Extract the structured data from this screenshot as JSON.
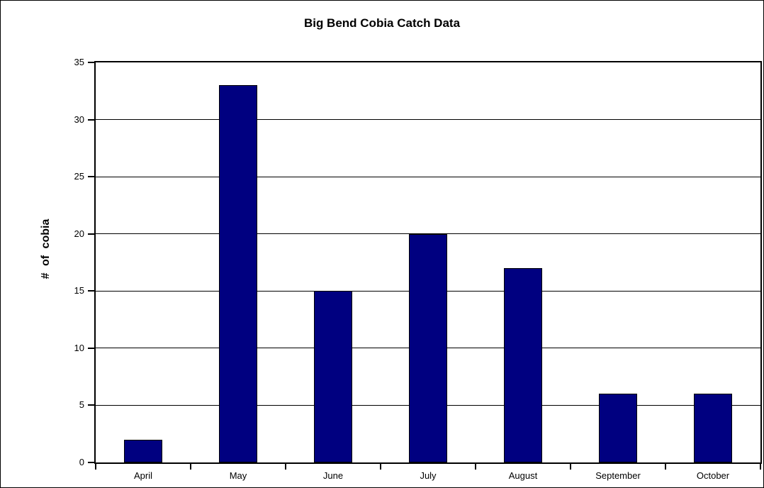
{
  "chart_data": {
    "type": "bar",
    "title": "Big Bend Cobia Catch Data",
    "categories": [
      "April",
      "May",
      "June",
      "July",
      "August",
      "September",
      "October"
    ],
    "values": [
      2,
      33,
      15,
      20,
      17,
      6,
      6
    ],
    "xlabel": "",
    "ylabel": "# of cobia",
    "ylim": [
      0,
      35
    ],
    "ytick_step": 5,
    "yticks": [
      0,
      5,
      10,
      15,
      20,
      25,
      30,
      35
    ],
    "grid": "horizontal",
    "legend": "none",
    "colors": {
      "bar_fill": "#000080",
      "bar_border": "#000000",
      "axis": "#000000",
      "gridline": "#000000",
      "background": "#ffffff",
      "text": "#000000"
    }
  }
}
